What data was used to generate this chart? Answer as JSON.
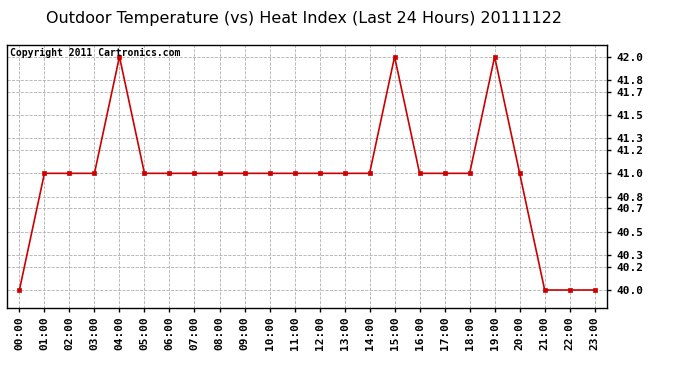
{
  "title": "Outdoor Temperature (vs) Heat Index (Last 24 Hours) 20111122",
  "copyright": "Copyright 2011 Cartronics.com",
  "x_labels": [
    "00:00",
    "01:00",
    "02:00",
    "03:00",
    "04:00",
    "05:00",
    "06:00",
    "07:00",
    "08:00",
    "09:00",
    "10:00",
    "11:00",
    "12:00",
    "13:00",
    "14:00",
    "15:00",
    "16:00",
    "17:00",
    "18:00",
    "19:00",
    "20:00",
    "21:00",
    "22:00",
    "23:00"
  ],
  "y_values": [
    40.0,
    41.0,
    41.0,
    41.0,
    42.0,
    41.0,
    41.0,
    41.0,
    41.0,
    41.0,
    41.0,
    41.0,
    41.0,
    41.0,
    41.0,
    42.0,
    41.0,
    41.0,
    41.0,
    42.0,
    41.0,
    40.0,
    40.0,
    40.0
  ],
  "ylim_min": 39.85,
  "ylim_max": 42.1,
  "yticks": [
    40.0,
    40.2,
    40.3,
    40.5,
    40.7,
    40.8,
    41.0,
    41.2,
    41.3,
    41.5,
    41.7,
    41.8,
    42.0
  ],
  "line_color": "#cc0000",
  "bg_color": "#ffffff",
  "grid_color": "#b0b0b0",
  "title_fontsize": 11.5,
  "copyright_fontsize": 7,
  "tick_fontsize": 8,
  "ytick_fontsize": 8
}
